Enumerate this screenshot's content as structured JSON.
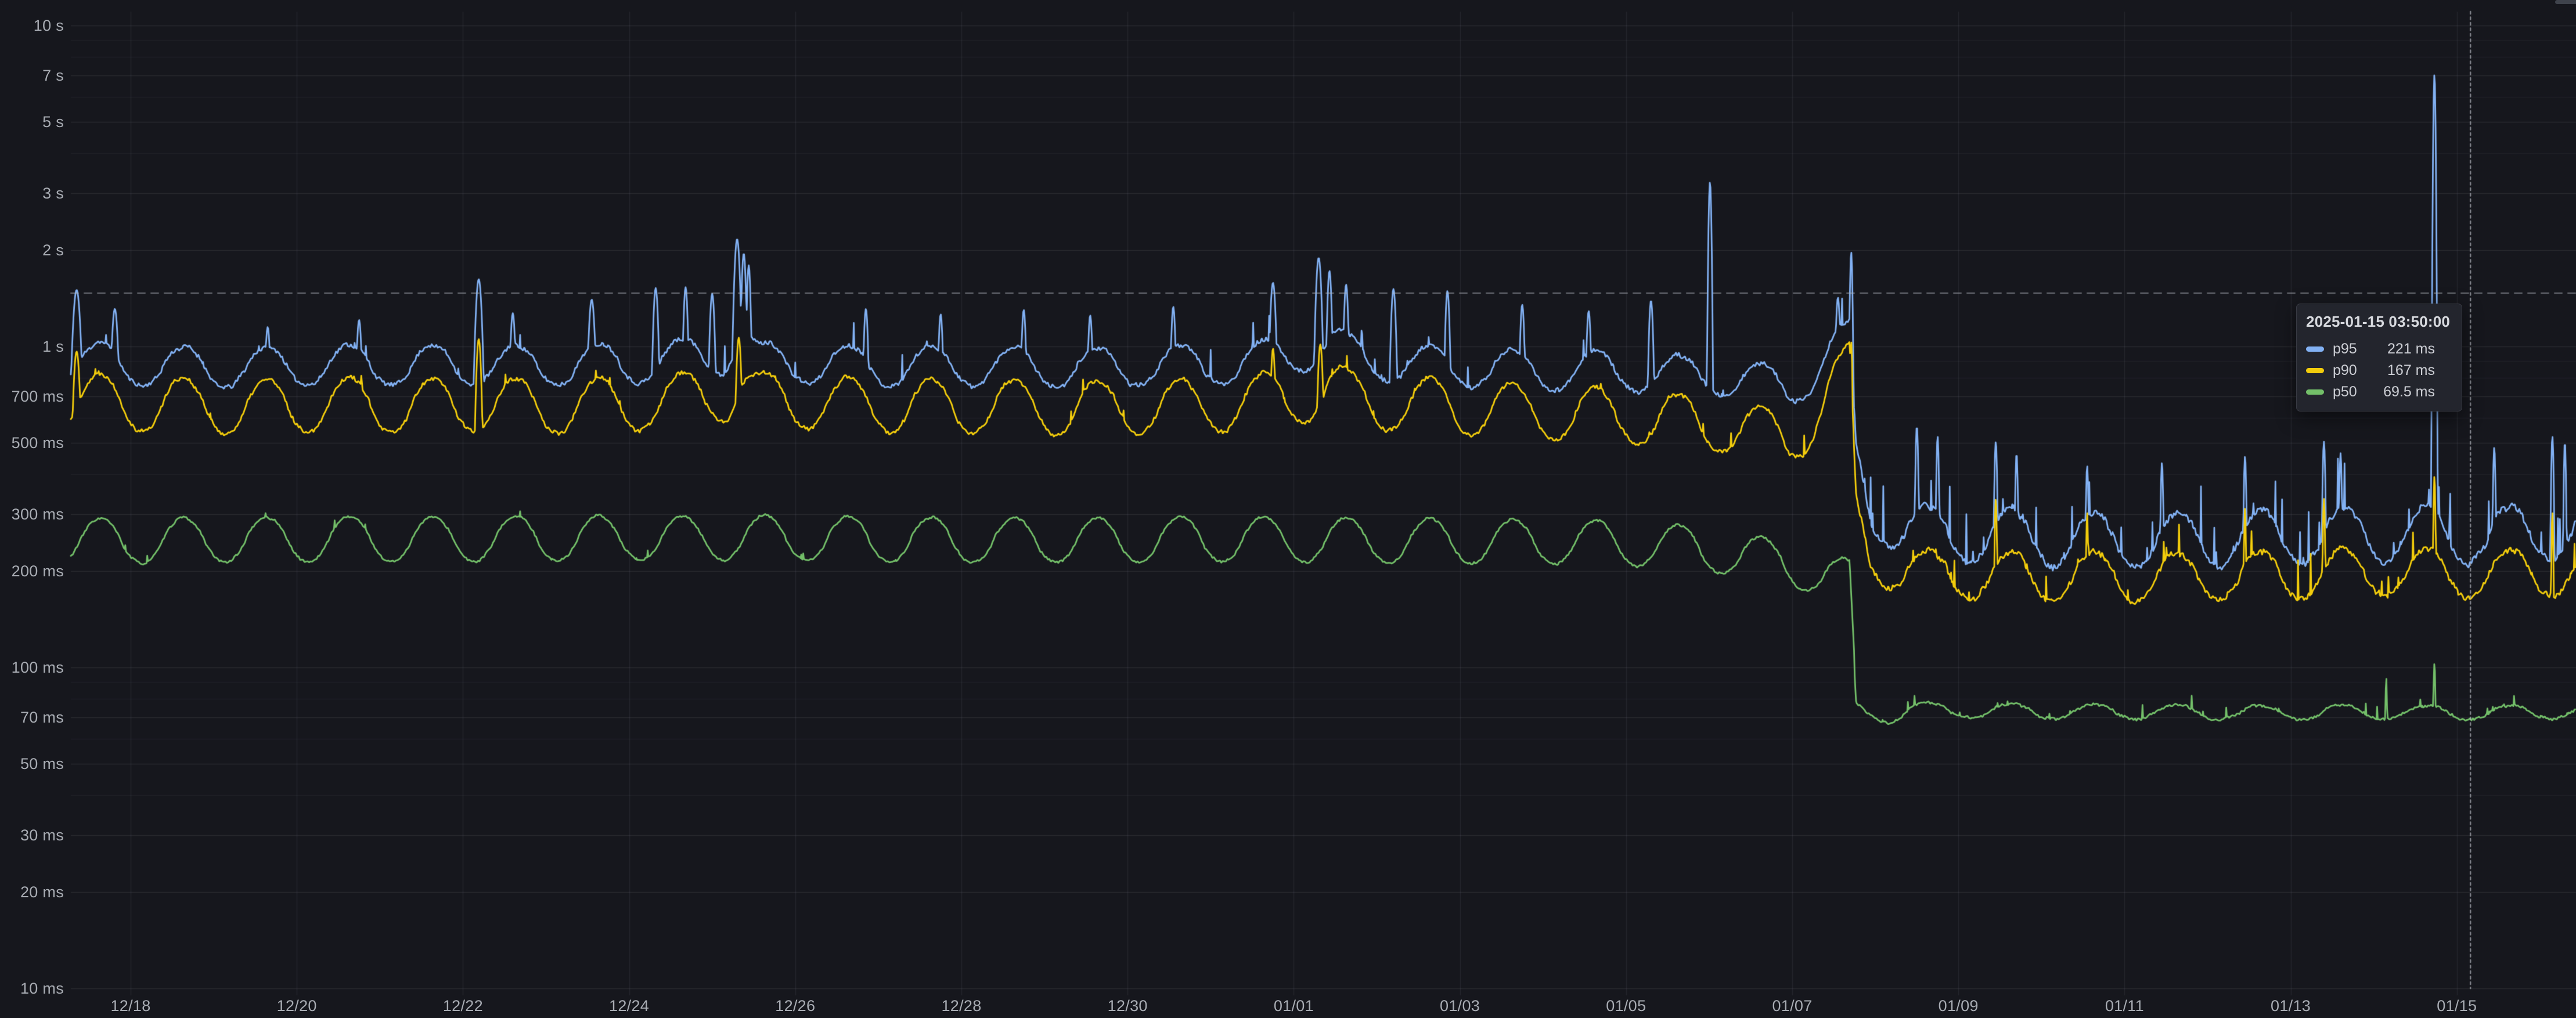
{
  "chart_data": {
    "type": "line",
    "title": "",
    "ylabel": "",
    "xlabel": "",
    "y_axis": {
      "scale": "log10",
      "unit": "duration",
      "ticks": [
        {
          "label": "10 s",
          "value": 10000
        },
        {
          "label": "7 s",
          "value": 7000
        },
        {
          "label": "5 s",
          "value": 5000
        },
        {
          "label": "3 s",
          "value": 3000
        },
        {
          "label": "2 s",
          "value": 2000
        },
        {
          "label": "1 s",
          "value": 1000
        },
        {
          "label": "700 ms",
          "value": 700
        },
        {
          "label": "500 ms",
          "value": 500
        },
        {
          "label": "300 ms",
          "value": 300
        },
        {
          "label": "200 ms",
          "value": 200
        },
        {
          "label": "100 ms",
          "value": 100
        },
        {
          "label": "70 ms",
          "value": 70
        },
        {
          "label": "50 ms",
          "value": 50
        },
        {
          "label": "30 ms",
          "value": 30
        },
        {
          "label": "20 ms",
          "value": 20
        },
        {
          "label": "10 ms",
          "value": 10
        }
      ],
      "minor_gridline_values": [
        9000,
        8000,
        6000,
        4000,
        900,
        800,
        600,
        400,
        90,
        80,
        60,
        40
      ]
    },
    "x_axis": {
      "start": "12/17 06:00",
      "end_day_offset": 30.18,
      "tick_labels": [
        {
          "label": "12/18",
          "day": 0.75
        },
        {
          "label": "12/20",
          "day": 2.75
        },
        {
          "label": "12/22",
          "day": 4.75
        },
        {
          "label": "12/24",
          "day": 6.75
        },
        {
          "label": "12/26",
          "day": 8.75
        },
        {
          "label": "12/28",
          "day": 10.75
        },
        {
          "label": "12/30",
          "day": 12.75
        },
        {
          "label": "01/01",
          "day": 14.75
        },
        {
          "label": "01/03",
          "day": 16.75
        },
        {
          "label": "01/05",
          "day": 18.75
        },
        {
          "label": "01/07",
          "day": 20.75
        },
        {
          "label": "01/09",
          "day": 22.75
        },
        {
          "label": "01/11",
          "day": 24.75
        },
        {
          "label": "01/13",
          "day": 26.75
        },
        {
          "label": "01/15",
          "day": 28.75
        }
      ]
    },
    "drop_day": 21.5,
    "series": [
      {
        "name": "p95",
        "color": "#82b1f3",
        "seed": 11,
        "daily_amp": [
          0.062,
          0.085
        ],
        "noise_amp": [
          0.014,
          0.02
        ],
        "needles": [
          [
            0.012,
            0.22
          ],
          [
            0.05,
            0.55
          ]
        ],
        "control_points": [
          [
            0,
            900
          ],
          [
            1,
            870
          ],
          [
            2,
            860
          ],
          [
            3,
            875
          ],
          [
            4,
            870
          ],
          [
            5,
            880
          ],
          [
            6,
            870
          ],
          [
            7,
            890
          ],
          [
            7.9,
            950
          ],
          [
            8.1,
            1120
          ],
          [
            8.3,
            900
          ],
          [
            9,
            880
          ],
          [
            10,
            870
          ],
          [
            11,
            865
          ],
          [
            12,
            860
          ],
          [
            13,
            865
          ],
          [
            14,
            880
          ],
          [
            14.9,
            960
          ],
          [
            15.2,
            1020
          ],
          [
            15.5,
            930
          ],
          [
            16,
            880
          ],
          [
            17,
            855
          ],
          [
            18,
            840
          ],
          [
            19,
            830
          ],
          [
            20,
            800
          ],
          [
            20.7,
            740
          ],
          [
            21.0,
            820
          ],
          [
            21.25,
            980
          ],
          [
            21.44,
            1040
          ],
          [
            21.52,
            430
          ],
          [
            21.7,
            310
          ],
          [
            22.0,
            280
          ],
          [
            22.4,
            262
          ],
          [
            23,
            258
          ],
          [
            24,
            252
          ],
          [
            25,
            248
          ],
          [
            26,
            250
          ],
          [
            27,
            256
          ],
          [
            28,
            262
          ],
          [
            29,
            258
          ],
          [
            30.2,
            266
          ]
        ],
        "spikes": [
          [
            0.1,
            1500,
            0.06
          ],
          [
            0.56,
            1310,
            0.05
          ],
          [
            2.4,
            1150,
            0.04
          ],
          [
            3.5,
            1210,
            0.04
          ],
          [
            4.94,
            1620,
            0.05
          ],
          [
            5.35,
            1270,
            0.04
          ],
          [
            6.3,
            1400,
            0.05
          ],
          [
            7.07,
            1520,
            0.04
          ],
          [
            7.43,
            1530,
            0.035
          ],
          [
            7.75,
            1460,
            0.04
          ],
          [
            8.05,
            2160,
            0.045
          ],
          [
            8.13,
            1950,
            0.035
          ],
          [
            8.19,
            1790,
            0.03
          ],
          [
            9.6,
            1310,
            0.035
          ],
          [
            10.5,
            1260,
            0.035
          ],
          [
            11.5,
            1300,
            0.035
          ],
          [
            12.3,
            1250,
            0.035
          ],
          [
            13.3,
            1330,
            0.035
          ],
          [
            14.5,
            1580,
            0.045
          ],
          [
            15.05,
            1890,
            0.045
          ],
          [
            15.18,
            1720,
            0.035
          ],
          [
            15.38,
            1560,
            0.035
          ],
          [
            15.95,
            1510,
            0.04
          ],
          [
            16.6,
            1490,
            0.035
          ],
          [
            17.5,
            1350,
            0.035
          ],
          [
            18.3,
            1290,
            0.035
          ],
          [
            19.05,
            1390,
            0.035
          ],
          [
            19.76,
            3250,
            0.022
          ],
          [
            21.3,
            1420,
            0.035
          ],
          [
            21.46,
            1970,
            0.02
          ],
          [
            22.25,
            565,
            0.022
          ],
          [
            22.5,
            525,
            0.02
          ],
          [
            23.2,
            505,
            0.022
          ],
          [
            23.45,
            465,
            0.02
          ],
          [
            24.3,
            425,
            0.02
          ],
          [
            25.2,
            435,
            0.02
          ],
          [
            26.2,
            455,
            0.02
          ],
          [
            27.15,
            505,
            0.022
          ],
          [
            27.35,
            465,
            0.02
          ],
          [
            28.48,
            7050,
            0.016
          ],
          [
            29.2,
            485,
            0.02
          ],
          [
            29.9,
            525,
            0.02
          ],
          [
            30.05,
            505,
            0.018
          ]
        ]
      },
      {
        "name": "p90",
        "color": "#f2cc0c",
        "seed": 22,
        "daily_amp": [
          0.085,
          0.075
        ],
        "noise_amp": [
          0.013,
          0.018
        ],
        "needles": [
          [
            0.01,
            0.15
          ],
          [
            0.04,
            0.35
          ]
        ],
        "control_points": [
          [
            0,
            690
          ],
          [
            1,
            660
          ],
          [
            2,
            650
          ],
          [
            3,
            660
          ],
          [
            4,
            655
          ],
          [
            5,
            660
          ],
          [
            6,
            650
          ],
          [
            7,
            665
          ],
          [
            7.95,
            720
          ],
          [
            8.1,
            800
          ],
          [
            8.3,
            690
          ],
          [
            9,
            665
          ],
          [
            10,
            655
          ],
          [
            11,
            650
          ],
          [
            12,
            645
          ],
          [
            13,
            650
          ],
          [
            14,
            660
          ],
          [
            14.9,
            700
          ],
          [
            15.2,
            740
          ],
          [
            15.5,
            690
          ],
          [
            16,
            660
          ],
          [
            17,
            640
          ],
          [
            18,
            620
          ],
          [
            19,
            600
          ],
          [
            20,
            565
          ],
          [
            20.7,
            510
          ],
          [
            21.0,
            600
          ],
          [
            21.25,
            760
          ],
          [
            21.44,
            840
          ],
          [
            21.52,
            300
          ],
          [
            21.7,
            225
          ],
          [
            22.0,
            205
          ],
          [
            22.4,
            196
          ],
          [
            23,
            194
          ],
          [
            24,
            192
          ],
          [
            25,
            190
          ],
          [
            26,
            192
          ],
          [
            27,
            196
          ],
          [
            28,
            198
          ],
          [
            29,
            196
          ],
          [
            30.2,
            200
          ]
        ],
        "spikes": [
          [
            0.1,
            965,
            0.05
          ],
          [
            4.94,
            1055,
            0.04
          ],
          [
            8.07,
            1065,
            0.04
          ],
          [
            14.5,
            985,
            0.035
          ],
          [
            15.07,
            1015,
            0.04
          ],
          [
            21.3,
            905,
            0.03
          ],
          [
            21.46,
            1035,
            0.018
          ],
          [
            23.2,
            335,
            0.018
          ],
          [
            24.3,
            305,
            0.015
          ],
          [
            26.2,
            315,
            0.015
          ],
          [
            27.15,
            335,
            0.018
          ],
          [
            28.48,
            395,
            0.016
          ],
          [
            29.9,
            305,
            0.015
          ]
        ]
      },
      {
        "name": "p50",
        "color": "#73bf69",
        "seed": 33,
        "daily_amp": [
          0.07,
          0.022
        ],
        "noise_amp": [
          0.007,
          0.008
        ],
        "needles": [
          [
            0.008,
            0.05
          ],
          [
            0.02,
            0.1
          ]
        ],
        "control_points": [
          [
            0,
            247
          ],
          [
            2,
            250
          ],
          [
            4,
            251
          ],
          [
            6,
            252
          ],
          [
            8,
            254
          ],
          [
            10,
            250
          ],
          [
            12,
            249
          ],
          [
            14,
            251
          ],
          [
            16,
            248
          ],
          [
            18,
            246
          ],
          [
            19,
            242
          ],
          [
            20,
            228
          ],
          [
            20.7,
            210
          ],
          [
            21.1,
            196
          ],
          [
            21.44,
            184
          ],
          [
            21.52,
            74.5
          ],
          [
            21.9,
            70.5
          ],
          [
            22.3,
            75
          ],
          [
            22.5,
            73.5
          ],
          [
            24,
            73
          ],
          [
            26,
            72.5
          ],
          [
            28,
            72.5
          ],
          [
            29,
            72
          ],
          [
            30.2,
            73
          ]
        ],
        "spikes": [
          [
            27.9,
            93,
            0.015
          ],
          [
            28.48,
            103,
            0.018
          ]
        ]
      }
    ],
    "cursor": {
      "time": "2025-01-15 03:50:00",
      "day": 28.91,
      "value_ms": 1470
    },
    "tooltip": {
      "title": "2025-01-15 03:50:00",
      "rows": [
        {
          "label": "p95",
          "value": "221 ms",
          "color": "#82b1f3"
        },
        {
          "label": "p90",
          "value": "167 ms",
          "color": "#f2cc0c"
        },
        {
          "label": "p50",
          "value": "69.5 ms",
          "color": "#73bf69"
        }
      ]
    },
    "colors": {
      "background": "#16171d",
      "grid": "#ccccdc",
      "text": "#d2d6de",
      "crosshair": "#b0b4bc"
    }
  }
}
